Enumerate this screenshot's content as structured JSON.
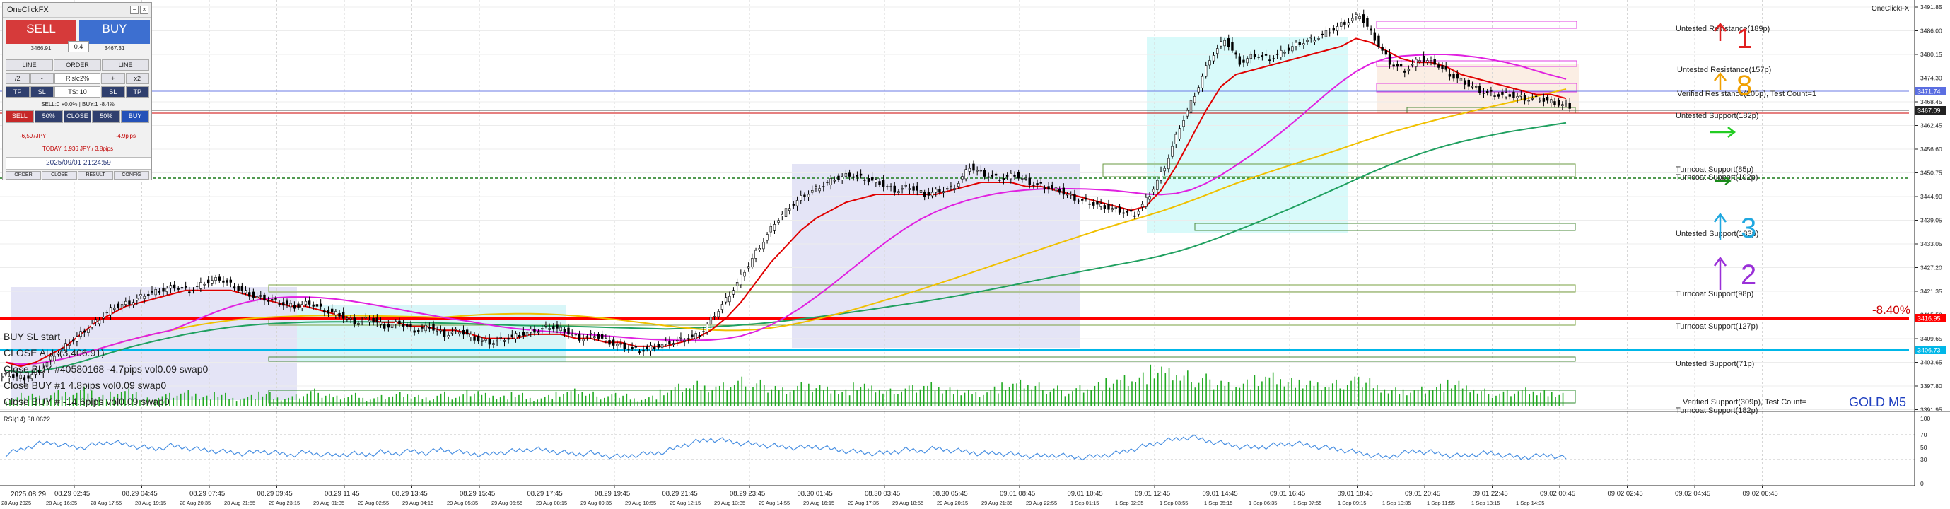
{
  "chart_window": {
    "broker_label": "OneClickFX",
    "symbol_label": "GOLD M5",
    "pct_label": "-8.40%",
    "rsi_label": "RSI(14) 38.0622",
    "date_label": "2025.08.29",
    "colors": {
      "ma_fast": "#e00000",
      "ma_mid": "#e020e0",
      "ma_slow": "#f0c000",
      "ma_long": "#20a060",
      "candle": "#000000",
      "volume": "#22aa22",
      "rsi": "#4a90e2",
      "bid_line": "#ff0000",
      "cyan_line": "#00c0e0"
    }
  },
  "price_axis": {
    "ticks": [
      "3491.85",
      "3486.00",
      "3480.15",
      "3474.30",
      "3468.45",
      "3462.45",
      "3456.60",
      "3450.75",
      "3444.90",
      "3439.05",
      "3433.05",
      "3427.20",
      "3421.35",
      "3415.50",
      "3409.65",
      "3403.65",
      "3397.80",
      "3391.95"
    ],
    "markers": [
      {
        "label": "3471.74",
        "color": "#5b6ee1"
      },
      {
        "label": "3467.09",
        "color": "#222222"
      },
      {
        "label": "3416.95",
        "color": "#ff0000"
      },
      {
        "label": "3406.73",
        "color": "#00b7e8"
      }
    ]
  },
  "rsi_axis": {
    "ticks": [
      "100",
      "70",
      "50",
      "30",
      "0"
    ]
  },
  "time_axis": {
    "upper": [
      "08.29 02:45",
      "08.29 04:45",
      "08.29 07:45",
      "08.29 09:45",
      "08.29 11:45",
      "08.29 13:45",
      "08.29 15:45",
      "08.29 17:45",
      "08.29 19:45",
      "08.29 21:45",
      "08.29 23:45",
      "08.30 01:45",
      "08.30 03:45",
      "08.30 05:45",
      "09.01 08:45",
      "09.01 10:45",
      "09.01 12:45",
      "09.01 14:45",
      "09.01 16:45",
      "09.01 18:45",
      "09.01 20:45",
      "09.01 22:45",
      "09.02 00:45",
      "09.02 02:45",
      "09.02 04:45",
      "09.02 06:45"
    ],
    "lower": [
      "28 Aug 2025",
      "28 Aug 16:35",
      "28 Aug 17:55",
      "28 Aug 19:15",
      "28 Aug 20:35",
      "28 Aug 21:55",
      "28 Aug 23:15",
      "29 Aug 01:35",
      "29 Aug 02:55",
      "29 Aug 04:15",
      "29 Aug 05:35",
      "29 Aug 06:55",
      "29 Aug 08:15",
      "29 Aug 09:35",
      "29 Aug 10:55",
      "29 Aug 12:15",
      "29 Aug 13:35",
      "29 Aug 14:55",
      "29 Aug 16:15",
      "29 Aug 17:35",
      "29 Aug 18:55",
      "29 Aug 20:15",
      "29 Aug 21:35",
      "29 Aug 22:55",
      "1 Sep 01:15",
      "1 Sep 02:35",
      "1 Sep 03:55",
      "1 Sep 05:15",
      "1 Sep 06:35",
      "1 Sep 07:55",
      "1 Sep 09:15",
      "1 Sep 10:35",
      "1 Sep 11:55",
      "1 Sep 13:15",
      "1 Sep 14:35"
    ]
  },
  "zone_labels": [
    "Untested Resistance(189p)",
    "Untested Resistance(157p)",
    "Verified Resistance(205p), Test Count=1",
    "Untested Support(182p)",
    "Turncoat Support(85p)",
    "Turncoat Support(192p)",
    "Untested Support(183p)",
    "Turncoat Support(98p)",
    "Turncoat Support(127p)",
    "Untested Support(71p)",
    "Verified Support(309p), Test Count=",
    "Turncoat Support(182p)"
  ],
  "signals": [
    {
      "text": "1",
      "color": "#e02020"
    },
    {
      "text": "8",
      "color": "#f0a000"
    },
    {
      "text": "3",
      "color": "#20a8e0"
    },
    {
      "text": "2",
      "color": "#9a30d8"
    }
  ],
  "trade_log": [
    "BUY SL start",
    "CLOSE ALL (3,406.91)",
    "Close BUY #40580168 -4.7pips vol0.09 swap0",
    "Close BUY #1      4.8pips vol0.09 swap0",
    "Close BUY #      -14.6pips vol0.09 swap0"
  ],
  "panel": {
    "title": "OneClickFX",
    "sell_label": "SELL",
    "buy_label": "BUY",
    "sell_price": "3466.91",
    "buy_price": "3467.31",
    "lot": "0.4",
    "row1": [
      "LINE",
      "ORDER",
      "LINE"
    ],
    "row2": [
      "/2",
      "-",
      "Risk:2%",
      "+",
      "x2"
    ],
    "row3": [
      "TP",
      "SL",
      "TS: 10",
      "SL",
      "TP"
    ],
    "position_info": "SELL:0 +0.0% | BUY:1 -8.4%",
    "row4": [
      "SELL",
      "50%",
      "CLOSE",
      "50%",
      "BUY"
    ],
    "pnl_left": "-6,597JPY",
    "pnl_right": "-4.9pips",
    "today": "TODAY: 1,936 JPY / 3.8pips",
    "clock": "2025/09/01 21:24:59",
    "footer": [
      "ORDER",
      "CLOSE",
      "RESULT",
      "CONFIG"
    ]
  },
  "chart_data": [
    {
      "type": "candlestick",
      "title": "GOLD M5",
      "ylim": [
        3391.95,
        3491.85
      ],
      "close_series": [
        3400,
        3399,
        3401,
        3405,
        3408,
        3411,
        3414,
        3417,
        3418,
        3420,
        3421,
        3422,
        3421,
        3423,
        3424,
        3422,
        3420,
        3419,
        3418,
        3417,
        3418,
        3416,
        3415,
        3413,
        3414,
        3412,
        3413,
        3411,
        3412,
        3410,
        3411,
        3409,
        3408,
        3409,
        3410,
        3411,
        3412,
        3411,
        3409,
        3410,
        3408,
        3407,
        3406,
        3407,
        3408,
        3409,
        3410,
        3415,
        3420,
        3426,
        3432,
        3438,
        3442,
        3445,
        3447,
        3449,
        3450,
        3449,
        3448,
        3446,
        3447,
        3445,
        3446,
        3447,
        3452,
        3450,
        3449,
        3450,
        3448,
        3447,
        3446,
        3444,
        3443,
        3442,
        3441,
        3440,
        3445,
        3452,
        3462,
        3470,
        3479,
        3484,
        3478,
        3480,
        3479,
        3481,
        3483,
        3484,
        3486,
        3488,
        3490,
        3484,
        3478,
        3476,
        3479,
        3478,
        3475,
        3473,
        3471,
        3470,
        3470,
        3469,
        3469,
        3468,
        3467
      ],
      "ma_fast": [
        3403,
        3402,
        3403,
        3405,
        3407,
        3410,
        3413,
        3415,
        3417,
        3418,
        3419,
        3420,
        3421,
        3421,
        3421,
        3421,
        3420,
        3419,
        3418,
        3417,
        3417,
        3416,
        3415,
        3414,
        3414,
        3413,
        3413,
        3412,
        3412,
        3411,
        3411,
        3410,
        3409,
        3409,
        3409,
        3410,
        3410,
        3410,
        3409,
        3409,
        3408,
        3408,
        3407,
        3407,
        3407,
        3408,
        3409,
        3411,
        3414,
        3418,
        3423,
        3428,
        3432,
        3436,
        3439,
        3441,
        3443,
        3444,
        3445,
        3445,
        3445,
        3445,
        3445,
        3446,
        3447,
        3448,
        3448,
        3448,
        3447,
        3447,
        3446,
        3445,
        3444,
        3443,
        3442,
        3441,
        3442,
        3446,
        3452,
        3459,
        3466,
        3472,
        3475,
        3476,
        3477,
        3478,
        3479,
        3480,
        3481,
        3482,
        3484,
        3483,
        3481,
        3479,
        3478,
        3478,
        3477,
        3475,
        3474,
        3473,
        3472,
        3471,
        3470,
        3470,
        3469
      ],
      "volume": [
        3,
        5,
        4,
        6,
        5,
        7,
        4,
        5,
        6,
        3,
        4,
        5,
        6,
        4,
        5,
        3,
        4,
        5,
        3,
        4,
        6,
        5,
        4,
        5,
        3,
        4,
        5,
        4,
        3,
        5,
        4,
        6,
        5,
        4,
        5,
        3,
        4,
        5,
        6,
        5,
        4,
        5,
        3,
        4,
        6,
        8,
        9,
        7,
        8,
        10,
        9,
        8,
        7,
        9,
        8,
        7,
        6,
        8,
        7,
        6,
        7,
        8,
        9,
        7,
        6,
        5,
        7,
        8,
        9,
        8,
        7,
        6,
        8,
        9,
        10,
        11,
        12,
        14,
        13,
        12,
        11,
        10,
        9,
        10,
        11,
        12,
        10,
        9,
        8,
        9,
        10,
        11,
        8,
        7,
        6,
        7,
        8,
        9,
        7,
        6,
        5,
        6,
        7,
        6,
        5
      ]
    },
    {
      "type": "line",
      "title": "RSI(14) 38.0622",
      "ylim": [
        0,
        100
      ],
      "values": [
        45,
        52,
        60,
        63,
        58,
        55,
        60,
        64,
        60,
        56,
        53,
        58,
        55,
        52,
        50,
        48,
        46,
        50,
        47,
        44,
        48,
        45,
        43,
        46,
        44,
        48,
        46,
        50,
        47,
        52,
        49,
        46,
        44,
        48,
        50,
        53,
        51,
        48,
        45,
        47,
        43,
        41,
        44,
        46,
        49,
        58,
        64,
        68,
        66,
        62,
        60,
        58,
        56,
        55,
        57,
        53,
        50,
        48,
        46,
        48,
        52,
        50,
        54,
        51,
        49,
        46,
        47,
        45,
        43,
        42,
        44,
        41,
        40,
        43,
        46,
        52,
        58,
        64,
        68,
        72,
        66,
        62,
        58,
        55,
        57,
        60,
        62,
        58,
        55,
        52,
        48,
        44,
        40,
        46,
        50,
        48,
        44,
        42,
        45,
        47,
        43,
        40,
        42,
        44,
        38
      ]
    }
  ]
}
